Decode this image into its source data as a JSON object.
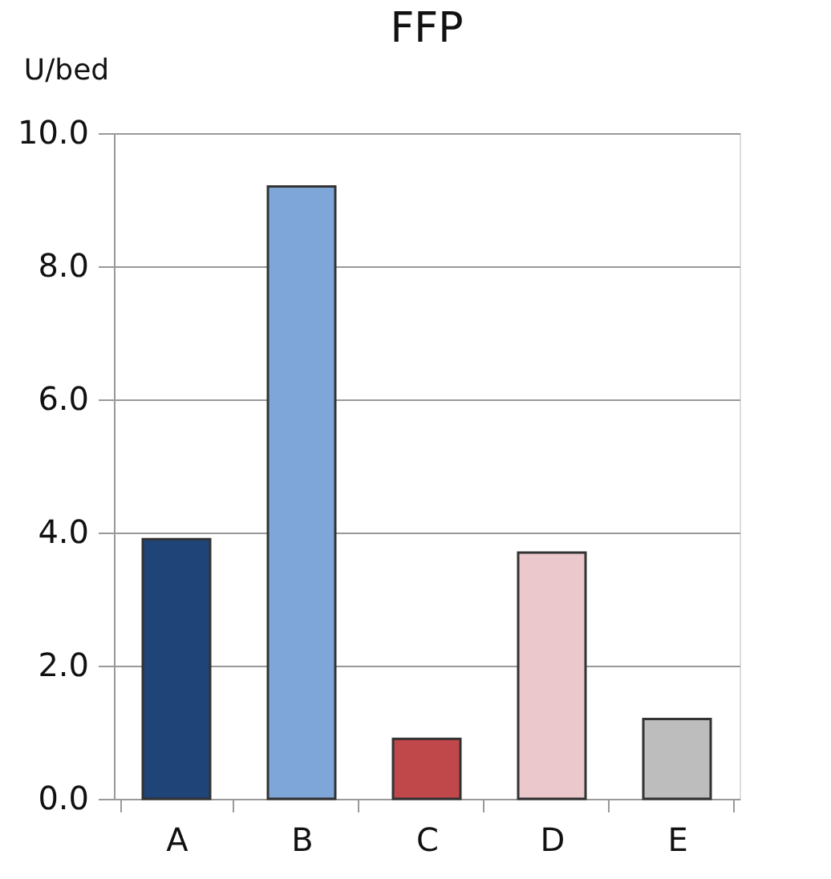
{
  "chart_data": {
    "type": "bar",
    "title": "FFP",
    "ylabel": "U/bed",
    "categories": [
      "A",
      "B",
      "C",
      "D",
      "E"
    ],
    "values": [
      3.9,
      9.2,
      0.9,
      3.7,
      1.2
    ],
    "colors": [
      "#1f4478",
      "#7ea6d8",
      "#c0474a",
      "#ebc8cc",
      "#bdbdbd"
    ],
    "ylim": [
      0,
      10
    ],
    "yticks": [
      {
        "value": 0,
        "label": "0.0"
      },
      {
        "value": 2,
        "label": "2.0"
      },
      {
        "value": 4,
        "label": "4.0"
      },
      {
        "value": 6,
        "label": "6.0"
      },
      {
        "value": 8,
        "label": "8.0"
      },
      {
        "value": 10,
        "label": "10.0"
      }
    ],
    "grid": "y",
    "legend": false
  }
}
